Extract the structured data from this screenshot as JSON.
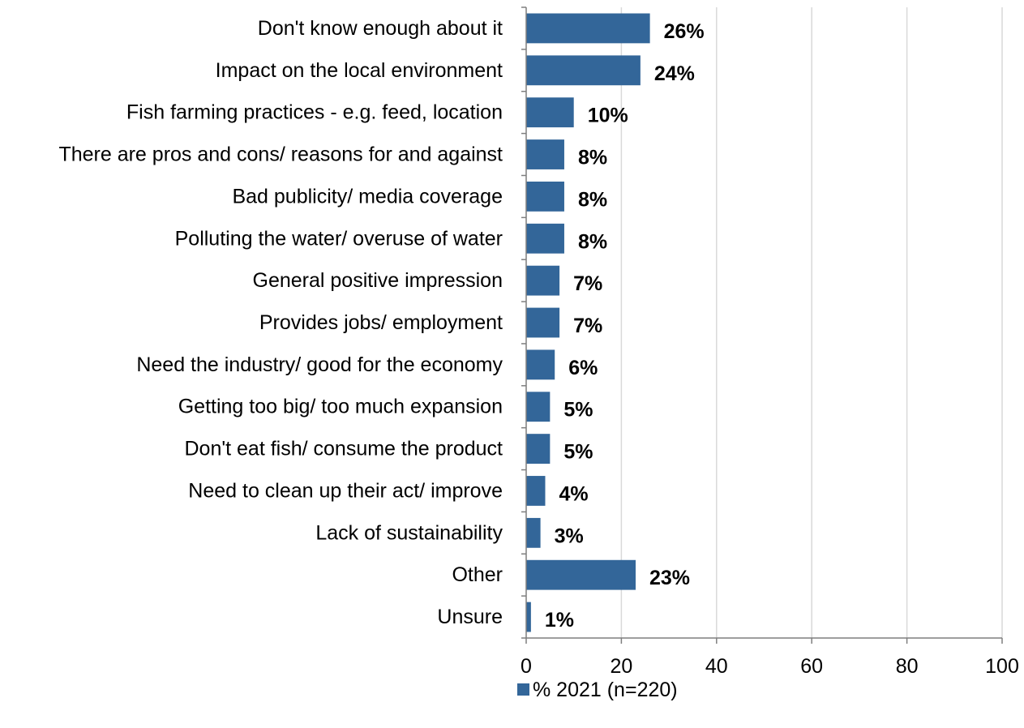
{
  "chart_data": {
    "type": "bar",
    "orientation": "horizontal",
    "categories": [
      "Don't know enough about it",
      "Impact on the local environment",
      "Fish farming practices - e.g. feed, location",
      "There are pros and cons/ reasons for and against",
      "Bad publicity/ media coverage",
      "Polluting the water/ overuse of water",
      "General positive impression",
      "Provides jobs/ employment",
      "Need the industry/ good for the economy",
      "Getting too big/ too much expansion",
      "Don't eat fish/ consume the product",
      "Need to clean up their act/ improve",
      "Lack of sustainability",
      "Other",
      "Unsure"
    ],
    "series": [
      {
        "name": "% 2021 (n=220)",
        "values": [
          26,
          24,
          10,
          8,
          8,
          8,
          7,
          7,
          6,
          5,
          5,
          4,
          3,
          23,
          1
        ],
        "value_labels": [
          "26%",
          "24%",
          "10%",
          "8%",
          "8%",
          "8%",
          "7%",
          "7%",
          "6%",
          "5%",
          "5%",
          "4%",
          "3%",
          "23%",
          "1%"
        ],
        "color": "#336699"
      }
    ],
    "xlim": [
      0,
      100
    ],
    "x_ticks": [
      "0",
      "20",
      "40",
      "60",
      "80",
      "100"
    ],
    "x_tick_values": [
      0,
      20,
      40,
      60,
      80,
      100
    ],
    "grid": "vertical",
    "legend_position": "bottom"
  },
  "colors": {
    "bar": "#336699",
    "grid": "#d9d9d9",
    "axis": "#7f7f7f"
  }
}
